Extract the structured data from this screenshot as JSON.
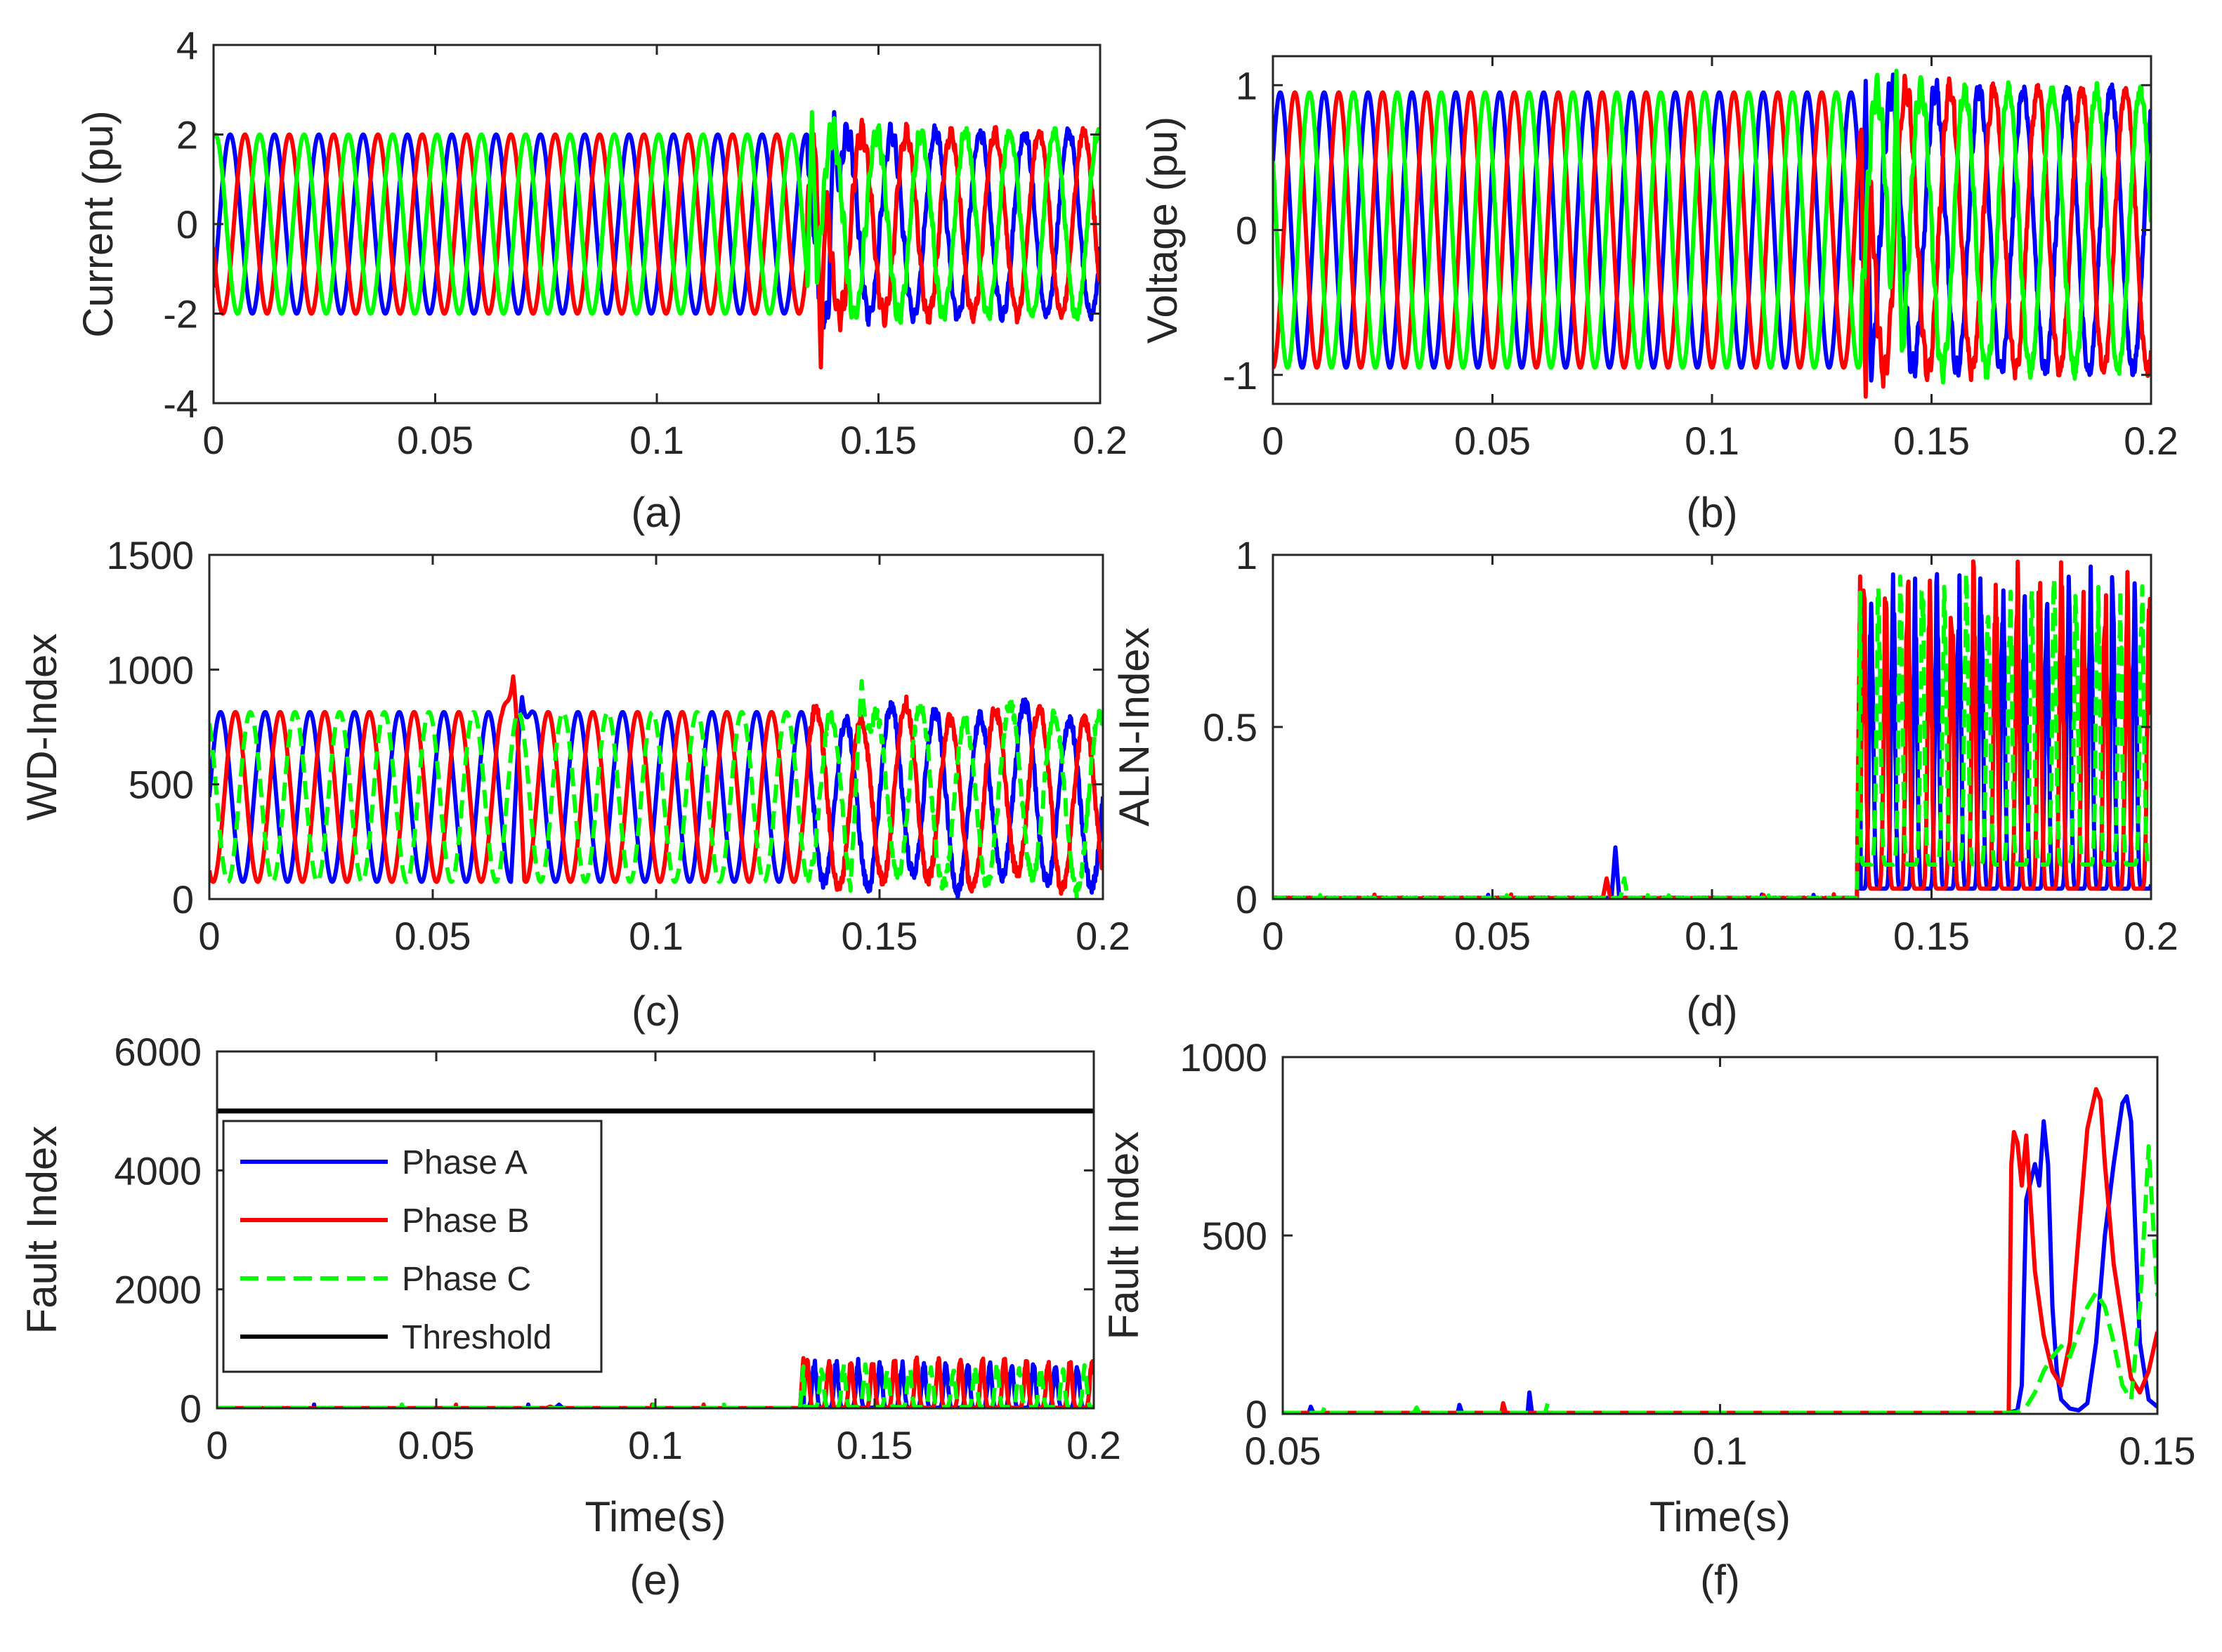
{
  "colors": {
    "phase_a": "#0000ff",
    "phase_b": "#ff0000",
    "phase_c": "#00ff00",
    "threshold": "#000000",
    "axis": "#262626"
  },
  "chart_data": [
    {
      "id": "a",
      "type": "line",
      "caption": "(a)",
      "xlabel": "",
      "ylabel": "Current (pu)",
      "xlim": [
        0,
        0.2
      ],
      "ylim": [
        -4,
        4
      ],
      "xticks": [
        0,
        0.05,
        0.1,
        0.15,
        0.2
      ],
      "xtick_labels": [
        "0",
        "0.05",
        "0.1",
        "0.15",
        "0.2"
      ],
      "yticks": [
        -4,
        -2,
        0,
        2,
        4
      ],
      "ytick_labels": [
        "-4",
        "-2",
        "0",
        "2",
        "4"
      ],
      "series": [
        {
          "name": "Phase A",
          "color_key": "phase_a",
          "dashed": false,
          "kind": "sine",
          "amp": 2.0,
          "freq": 100,
          "phase_deg": -45,
          "disturb_start": 0.134,
          "disturb_amp": 0.7,
          "spike": [
            0.14,
            2.5
          ]
        },
        {
          "name": "Phase B",
          "color_key": "phase_b",
          "dashed": false,
          "kind": "sine",
          "amp": 2.0,
          "freq": 100,
          "phase_deg": -165,
          "disturb_start": 0.134,
          "disturb_amp": 0.7,
          "spike": [
            0.137,
            -3.2
          ]
        },
        {
          "name": "Phase C",
          "color_key": "phase_c",
          "dashed": false,
          "kind": "sine",
          "amp": 2.0,
          "freq": 100,
          "phase_deg": 75,
          "disturb_start": 0.134,
          "disturb_amp": 0.7,
          "spike": [
            0.135,
            2.5
          ]
        }
      ]
    },
    {
      "id": "b",
      "type": "line",
      "caption": "(b)",
      "xlabel": "",
      "ylabel": "Voltage (pu)",
      "xlim": [
        0,
        0.2
      ],
      "ylim": [
        -1.2,
        1.2
      ],
      "xticks": [
        0,
        0.05,
        0.1,
        0.15,
        0.2
      ],
      "xtick_labels": [
        "0",
        "0.05",
        "0.1",
        "0.15",
        "0.2"
      ],
      "yticks": [
        -1,
        0,
        1
      ],
      "ytick_labels": [
        "-1",
        "0",
        "1"
      ],
      "series": [
        {
          "name": "Phase A",
          "color_key": "phase_a",
          "dashed": false,
          "kind": "sine",
          "amp": 0.95,
          "freq": 100,
          "phase_deg": 30,
          "disturb_start": 0.134,
          "disturb_amp": 0.25,
          "spike": [
            0.135,
            1.03
          ]
        },
        {
          "name": "Phase B",
          "color_key": "phase_b",
          "dashed": false,
          "kind": "sine",
          "amp": 0.95,
          "freq": 100,
          "phase_deg": -90,
          "disturb_start": 0.134,
          "disturb_amp": 0.25,
          "spike": [
            0.135,
            -1.15
          ]
        },
        {
          "name": "Phase C",
          "color_key": "phase_c",
          "dashed": false,
          "kind": "sine",
          "amp": 0.95,
          "freq": 100,
          "phase_deg": 150,
          "disturb_start": 0.134,
          "disturb_amp": 0.25,
          "spike": [
            0.142,
            1.1
          ]
        }
      ]
    },
    {
      "id": "c",
      "type": "line",
      "caption": "(c)",
      "xlabel": "",
      "ylabel": "WD-Index",
      "xlim": [
        0,
        0.2
      ],
      "ylim": [
        0,
        1500
      ],
      "xticks": [
        0,
        0.05,
        0.1,
        0.15,
        0.2
      ],
      "xtick_labels": [
        "0",
        "0.05",
        "0.1",
        "0.15",
        "0.2"
      ],
      "yticks": [
        0,
        500,
        1000,
        1500
      ],
      "ytick_labels": [
        "0",
        "500",
        "1000",
        "1500"
      ],
      "series": [
        {
          "name": "Phase A",
          "color_key": "phase_a",
          "dashed": false,
          "kind": "offset_sine",
          "base": 445,
          "amp": 370,
          "freq": 100,
          "phase_deg": 0,
          "disturb_start": 0.134,
          "disturb_amp": 60,
          "spike": [
            0.07,
            880
          ]
        },
        {
          "name": "Phase B",
          "color_key": "phase_b",
          "dashed": false,
          "kind": "offset_sine",
          "base": 445,
          "amp": 370,
          "freq": 100,
          "phase_deg": -120,
          "disturb_start": 0.134,
          "disturb_amp": 60,
          "spike": [
            0.068,
            970
          ]
        },
        {
          "name": "Phase C",
          "color_key": "phase_c",
          "dashed": true,
          "kind": "offset_sine",
          "base": 445,
          "amp": 370,
          "freq": 100,
          "phase_deg": 120,
          "disturb_start": 0.134,
          "disturb_amp": 60,
          "spike": [
            0.146,
            950
          ]
        }
      ]
    },
    {
      "id": "d",
      "type": "line",
      "caption": "(d)",
      "xlabel": "",
      "ylabel": "ALN-Index",
      "xlim": [
        0,
        0.2
      ],
      "ylim": [
        0,
        1
      ],
      "xticks": [
        0,
        0.05,
        0.1,
        0.15,
        0.2
      ],
      "xtick_labels": [
        "0",
        "0.05",
        "0.1",
        "0.15",
        "0.2"
      ],
      "yticks": [
        0,
        0.5,
        1
      ],
      "ytick_labels": [
        "0",
        "0.5",
        "1"
      ],
      "series": [
        {
          "name": "Phase A",
          "color_key": "phase_a",
          "dashed": false,
          "kind": "index",
          "base_noise": 0.004,
          "small_peak": [
            0.078,
            0.15
          ],
          "fault_start": 0.133,
          "fault_floor": 0.03,
          "fault_peak": 0.98,
          "freq": 200,
          "phase_deg": 0
        },
        {
          "name": "Phase B",
          "color_key": "phase_b",
          "dashed": false,
          "kind": "index",
          "base_noise": 0.004,
          "small_peak": [
            0.076,
            0.06
          ],
          "fault_start": 0.133,
          "fault_floor": 0.03,
          "fault_peak": 1.0,
          "freq": 200,
          "phase_deg": 120
        },
        {
          "name": "Phase C",
          "color_key": "phase_c",
          "dashed": true,
          "kind": "index",
          "base_noise": 0.004,
          "small_peak": [
            0.08,
            0.06
          ],
          "fault_start": 0.133,
          "fault_floor": 0.1,
          "fault_peak": 0.95,
          "freq": 200,
          "phase_deg": 240
        }
      ]
    },
    {
      "id": "e",
      "type": "line",
      "caption": "(e)",
      "xlabel": "Time(s)",
      "ylabel": "Fault Index",
      "xlim": [
        0,
        0.2
      ],
      "ylim": [
        0,
        6000
      ],
      "xticks": [
        0,
        0.05,
        0.1,
        0.15,
        0.2
      ],
      "xtick_labels": [
        "0",
        "0.05",
        "0.1",
        "0.15",
        "0.2"
      ],
      "yticks": [
        0,
        2000,
        4000,
        6000
      ],
      "ytick_labels": [
        "0",
        "2000",
        "4000",
        "6000"
      ],
      "legend": {
        "entries": [
          "Phase A",
          "Phase B",
          "Phase C",
          "Threshold"
        ],
        "placement": "middle-left"
      },
      "series": [
        {
          "name": "Phase A",
          "color_key": "phase_a",
          "dashed": false,
          "kind": "index",
          "base_noise": 3,
          "small_peak": [
            0.078,
            60
          ],
          "fault_start": 0.133,
          "fault_floor": 10,
          "fault_peak": 850,
          "freq": 200,
          "phase_deg": 0
        },
        {
          "name": "Phase B",
          "color_key": "phase_b",
          "dashed": false,
          "kind": "index",
          "base_noise": 3,
          "small_peak": [
            0.076,
            30
          ],
          "fault_start": 0.133,
          "fault_floor": 10,
          "fault_peak": 900,
          "freq": 200,
          "phase_deg": 120
        },
        {
          "name": "Phase C",
          "color_key": "phase_c",
          "dashed": true,
          "kind": "index",
          "base_noise": 3,
          "small_peak": [
            0.08,
            30
          ],
          "fault_start": 0.133,
          "fault_floor": 20,
          "fault_peak": 750,
          "freq": 200,
          "phase_deg": 240
        },
        {
          "name": "Threshold",
          "color_key": "threshold",
          "dashed": false,
          "kind": "constant",
          "value": 5000
        }
      ]
    },
    {
      "id": "f",
      "type": "line",
      "caption": "(f)",
      "xlabel": "Time(s)",
      "ylabel": "Fault Index",
      "xlim": [
        0.05,
        0.15
      ],
      "ylim": [
        0,
        1000
      ],
      "xticks": [
        0.05,
        0.1,
        0.15
      ],
      "xtick_labels": [
        "0.05",
        "0.1",
        "0.15"
      ],
      "yticks": [
        0,
        500,
        1000
      ],
      "ytick_labels": [
        "0",
        "500",
        "1000"
      ],
      "series": [
        {
          "name": "Phase A",
          "color_key": "phase_a",
          "dashed": false,
          "kind": "points",
          "x": [
            0.05,
            0.053,
            0.0532,
            0.0535,
            0.07,
            0.0702,
            0.0705,
            0.078,
            0.0782,
            0.0785,
            0.09,
            0.1,
            0.12,
            0.133,
            0.134,
            0.1345,
            0.135,
            0.136,
            0.1365,
            0.137,
            0.1375,
            0.138,
            0.1385,
            0.139,
            0.14,
            0.141,
            0.142,
            0.143,
            0.144,
            0.145,
            0.146,
            0.1465,
            0.147,
            0.1475,
            0.148,
            0.149,
            0.15
          ],
          "y": [
            3,
            3,
            20,
            3,
            3,
            25,
            3,
            3,
            60,
            3,
            3,
            3,
            3,
            3,
            10,
            80,
            600,
            700,
            640,
            820,
            700,
            300,
            120,
            40,
            15,
            10,
            30,
            200,
            500,
            700,
            870,
            890,
            820,
            500,
            200,
            40,
            20
          ]
        },
        {
          "name": "Phase B",
          "color_key": "phase_b",
          "dashed": false,
          "kind": "points",
          "x": [
            0.05,
            0.075,
            0.0752,
            0.0755,
            0.09,
            0.1,
            0.12,
            0.133,
            0.1333,
            0.1336,
            0.134,
            0.1345,
            0.135,
            0.136,
            0.137,
            0.138,
            0.139,
            0.14,
            0.141,
            0.142,
            0.143,
            0.1435,
            0.144,
            0.145,
            0.146,
            0.147,
            0.148,
            0.149,
            0.15
          ],
          "y": [
            3,
            3,
            30,
            3,
            3,
            3,
            3,
            3,
            700,
            790,
            760,
            640,
            780,
            400,
            220,
            120,
            80,
            200,
            500,
            800,
            910,
            880,
            700,
            420,
            260,
            100,
            60,
            120,
            230
          ]
        },
        {
          "name": "Phase C",
          "color_key": "phase_c",
          "dashed": true,
          "kind": "points",
          "x": [
            0.05,
            0.0545,
            0.0548,
            0.0551,
            0.065,
            0.0653,
            0.0656,
            0.08,
            0.0803,
            0.0806,
            0.09,
            0.1,
            0.12,
            0.133,
            0.134,
            0.135,
            0.136,
            0.137,
            0.138,
            0.139,
            0.14,
            0.141,
            0.142,
            0.143,
            0.144,
            0.145,
            0.146,
            0.147,
            0.148,
            0.149,
            0.15
          ],
          "y": [
            3,
            3,
            18,
            3,
            3,
            18,
            3,
            3,
            30,
            3,
            3,
            3,
            3,
            3,
            5,
            20,
            60,
            120,
            160,
            190,
            160,
            230,
            300,
            340,
            300,
            200,
            80,
            40,
            300,
            750,
            330
          ]
        }
      ]
    }
  ]
}
